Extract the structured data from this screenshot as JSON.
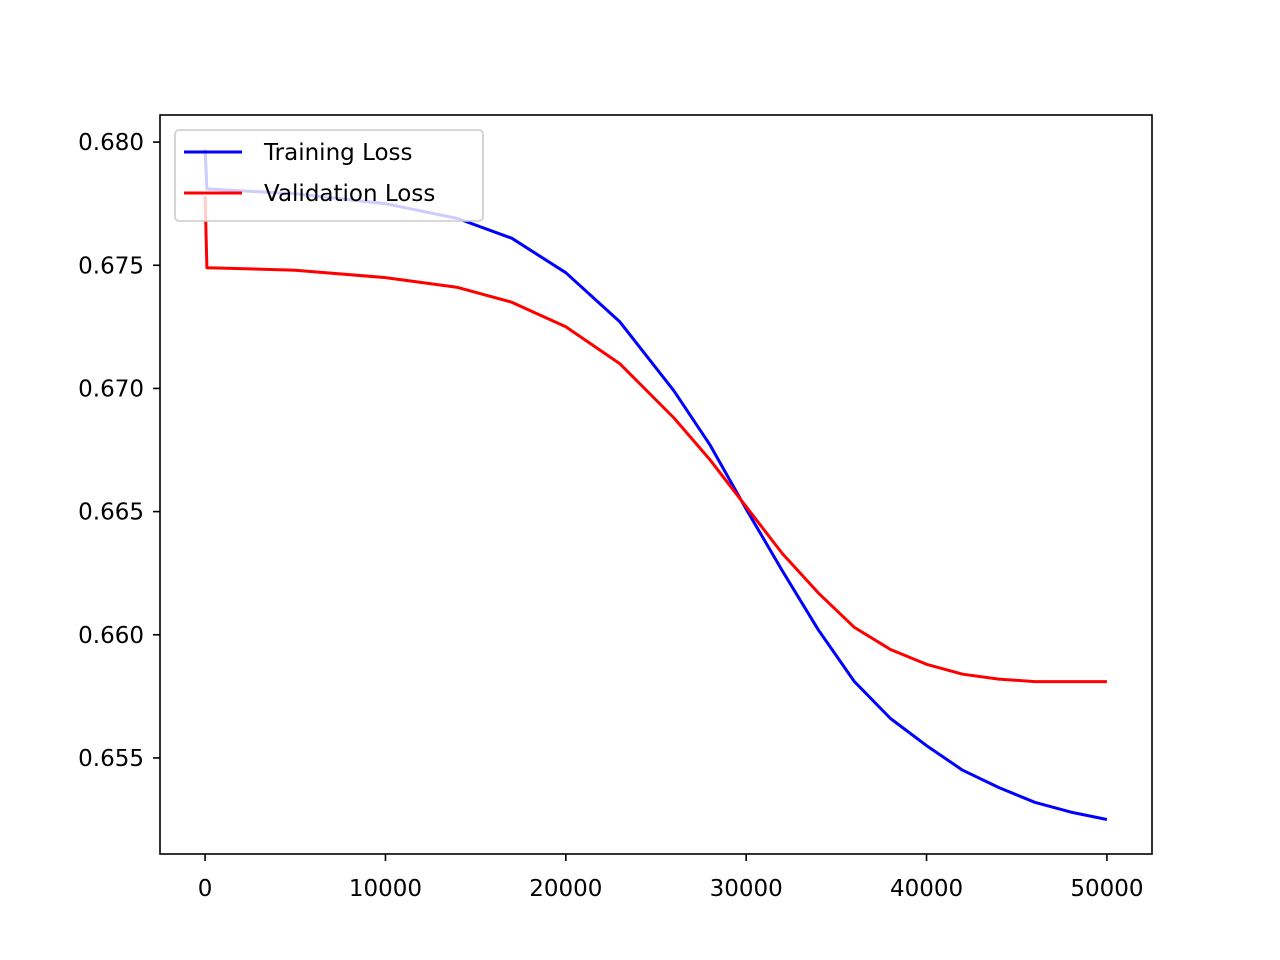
{
  "chart_data": {
    "type": "line",
    "title": "",
    "xlabel": "",
    "ylabel": "",
    "xlim": [
      -2500,
      52500
    ],
    "ylim": [
      0.6511,
      0.6811
    ],
    "x_ticks": [
      0,
      10000,
      20000,
      30000,
      40000,
      50000
    ],
    "x_tick_labels": [
      "0",
      "10000",
      "20000",
      "30000",
      "40000",
      "50000"
    ],
    "y_ticks": [
      0.655,
      0.66,
      0.665,
      0.67,
      0.675,
      0.68
    ],
    "y_tick_labels": [
      "0.655",
      "0.660",
      "0.665",
      "0.670",
      "0.675",
      "0.680"
    ],
    "grid": false,
    "legend_position": "upper left",
    "series": [
      {
        "name": "Training Loss",
        "color": "#0000ff",
        "points": [
          [
            0,
            0.6797
          ],
          [
            100,
            0.6781
          ],
          [
            5000,
            0.6779
          ],
          [
            10000,
            0.6775
          ],
          [
            14000,
            0.6769
          ],
          [
            17000,
            0.6761
          ],
          [
            20000,
            0.6747
          ],
          [
            23000,
            0.6727
          ],
          [
            26000,
            0.6699
          ],
          [
            28000,
            0.6677
          ],
          [
            30000,
            0.6651
          ],
          [
            32000,
            0.6626
          ],
          [
            34000,
            0.6602
          ],
          [
            36000,
            0.6581
          ],
          [
            38000,
            0.6566
          ],
          [
            40000,
            0.6555
          ],
          [
            42000,
            0.6545
          ],
          [
            44000,
            0.6538
          ],
          [
            46000,
            0.6532
          ],
          [
            48000,
            0.6528
          ],
          [
            50000,
            0.6525
          ]
        ]
      },
      {
        "name": "Validation Loss",
        "color": "#ff0000",
        "points": [
          [
            0,
            0.6778
          ],
          [
            100,
            0.6749
          ],
          [
            5000,
            0.6748
          ],
          [
            10000,
            0.6745
          ],
          [
            14000,
            0.6741
          ],
          [
            17000,
            0.6735
          ],
          [
            20000,
            0.6725
          ],
          [
            23000,
            0.671
          ],
          [
            26000,
            0.6688
          ],
          [
            28000,
            0.6671
          ],
          [
            30000,
            0.6652
          ],
          [
            32000,
            0.6633
          ],
          [
            34000,
            0.6617
          ],
          [
            36000,
            0.6603
          ],
          [
            38000,
            0.6594
          ],
          [
            40000,
            0.6588
          ],
          [
            42000,
            0.6584
          ],
          [
            44000,
            0.6582
          ],
          [
            46000,
            0.6581
          ],
          [
            48000,
            0.6581
          ],
          [
            50000,
            0.6581
          ]
        ]
      }
    ]
  }
}
